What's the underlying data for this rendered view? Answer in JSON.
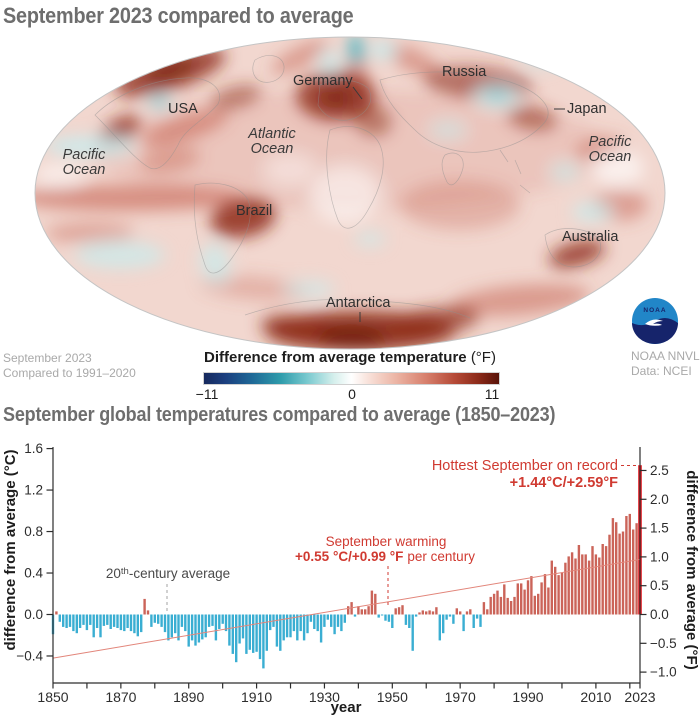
{
  "map": {
    "title": "September 2023 compared to average",
    "labels": {
      "usa": "USA",
      "germany": "Germany",
      "russia": "Russia",
      "japan": "Japan",
      "brazil": "Brazil",
      "australia": "Australia",
      "antarctica": "Antarctica",
      "atlantic_line1": "Atlantic",
      "atlantic_line2": "Ocean",
      "pacific_line1": "Pacific",
      "pacific_line2": "Ocean"
    },
    "legend": {
      "title_main": "Difference from average temperature",
      "title_unit": "(°F)",
      "tick_min": "−11",
      "tick_mid": "0",
      "tick_max": "11"
    },
    "credit_left_line1": "September 2023",
    "credit_left_line2": "Compared to 1991–2020",
    "credit_right_line1": "NOAA NNVL",
    "credit_right_line2": "Data: NCEI",
    "logo_text": "NOAA"
  },
  "chart": {
    "title": "September global temperatures compared to average (1850–2023)",
    "ylabel_left": "difference from average (°C)",
    "ylabel_right": "difference from average (°F)",
    "xlabel": "year",
    "annotations": {
      "century_prefix": "20",
      "century_sup": "th",
      "century_rest": "-century average",
      "warming_line1": "September warming",
      "warming_value": "+0.55 °C/+0.99 °F",
      "warming_rest": "per century",
      "record_line1": "Hottest September on record",
      "record_line2": "+1.44°C/+2.59°F"
    }
  },
  "chart_data": {
    "type": "bar",
    "title": "September global temperatures compared to average (1850–2023)",
    "xlabel": "year",
    "ylabel_left": "difference from average (°C)",
    "ylabel_right": "difference from average (°F)",
    "x_start": 1850,
    "x_end": 2023,
    "ylim_c": [
      -0.67,
      1.62
    ],
    "yticks_c": [
      1.6,
      1.2,
      0.8,
      0.4,
      0.0,
      -0.4
    ],
    "yticks_f": [
      2.5,
      2.0,
      1.5,
      1.0,
      0.5,
      0.0,
      -0.5,
      -1.0
    ],
    "xticks": [
      1850,
      1870,
      1890,
      1910,
      1930,
      1950,
      1970,
      1990,
      2010,
      2023
    ],
    "trend_start_c": -0.42,
    "trend_c_per_century": 0.55,
    "record_year": 2023,
    "record_value_c": 1.44,
    "record_value_f": 2.59,
    "values_c": [
      -0.19,
      0.03,
      -0.07,
      -0.12,
      -0.13,
      -0.12,
      -0.16,
      -0.18,
      -0.13,
      -0.1,
      -0.15,
      -0.1,
      -0.22,
      -0.13,
      -0.22,
      -0.11,
      -0.1,
      -0.14,
      -0.12,
      -0.13,
      -0.15,
      -0.16,
      -0.13,
      -0.16,
      -0.18,
      -0.21,
      -0.17,
      0.15,
      0.04,
      -0.12,
      -0.08,
      -0.09,
      -0.12,
      -0.17,
      -0.25,
      -0.22,
      -0.18,
      -0.25,
      -0.12,
      -0.16,
      -0.31,
      -0.25,
      -0.3,
      -0.27,
      -0.24,
      -0.22,
      -0.12,
      -0.11,
      -0.25,
      -0.14,
      -0.09,
      -0.16,
      -0.3,
      -0.38,
      -0.46,
      -0.28,
      -0.23,
      -0.38,
      -0.34,
      -0.37,
      -0.36,
      -0.43,
      -0.52,
      -0.35,
      -0.15,
      -0.12,
      -0.31,
      -0.35,
      -0.25,
      -0.22,
      -0.22,
      -0.16,
      -0.25,
      -0.16,
      -0.25,
      -0.18,
      -0.07,
      -0.14,
      -0.16,
      -0.27,
      -0.12,
      -0.05,
      -0.12,
      -0.19,
      -0.12,
      -0.16,
      -0.08,
      0.08,
      0.12,
      -0.02,
      0.08,
      0.05,
      0.05,
      0.08,
      0.23,
      0.2,
      -0.03,
      -0.01,
      -0.06,
      -0.07,
      -0.13,
      0.06,
      0.07,
      0.09,
      -0.1,
      -0.13,
      -0.35,
      -0.02,
      0.02,
      0.04,
      0.03,
      0.04,
      0.03,
      0.07,
      -0.25,
      -0.18,
      -0.05,
      -0.02,
      -0.09,
      0.06,
      0.03,
      -0.16,
      0.03,
      0.05,
      -0.13,
      -0.04,
      -0.12,
      0.12,
      0.05,
      0.17,
      0.2,
      0.23,
      0.17,
      0.29,
      0.16,
      0.13,
      0.17,
      0.3,
      0.3,
      0.24,
      0.33,
      0.37,
      0.18,
      0.2,
      0.31,
      0.39,
      0.26,
      0.52,
      0.46,
      0.38,
      0.4,
      0.5,
      0.56,
      0.6,
      0.54,
      0.67,
      0.58,
      0.58,
      0.52,
      0.66,
      0.58,
      0.55,
      0.68,
      0.66,
      0.77,
      0.93,
      0.89,
      0.78,
      0.8,
      0.95,
      0.97,
      0.82,
      0.88,
      1.44
    ],
    "colors": {
      "positive": "#cb6459",
      "negative": "#3aaed2",
      "record": "#e21b22",
      "trend": "#e2857a"
    }
  }
}
